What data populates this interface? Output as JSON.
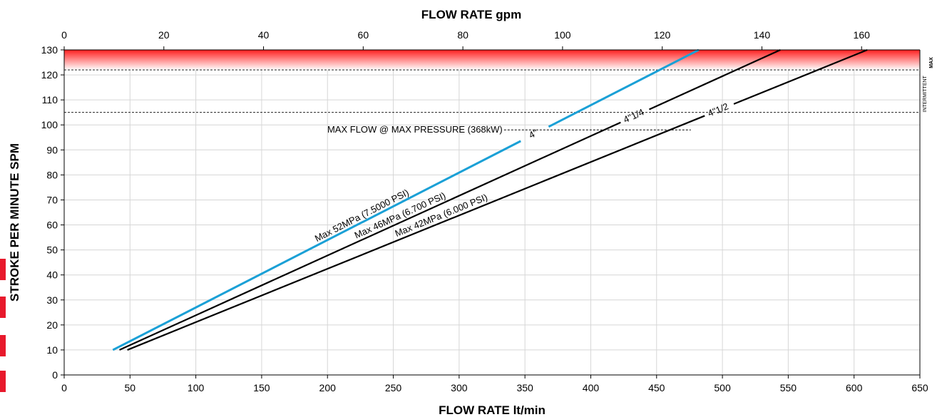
{
  "chart_data": {
    "type": "line",
    "xlabel": "FLOW RATE  lt/min",
    "x2label": "FLOW RATE  gpm",
    "ylabel": "STROKE PER MINUTE     SPM",
    "xlim": [
      0,
      650
    ],
    "x2lim": [
      0,
      171.7
    ],
    "ylim": [
      0,
      130
    ],
    "xticks": [
      "0",
      "50",
      "100",
      "150",
      "200",
      "250",
      "300",
      "350",
      "400",
      "450",
      "500",
      "550",
      "600",
      "650"
    ],
    "x2ticks": [
      "0",
      "20",
      "40",
      "60",
      "80",
      "100",
      "120",
      "140",
      "160"
    ],
    "yticks": [
      "0",
      "10",
      "20",
      "30",
      "40",
      "50",
      "60",
      "70",
      "80",
      "90",
      "100",
      "110",
      "120",
      "130"
    ],
    "grid": true,
    "intermittent_max_band": {
      "from": 122,
      "to": 130,
      "color": "#ff2a2a",
      "label": "INTERMITTENT",
      "label2": "MAX"
    },
    "continuous_max_line": 105,
    "series": [
      {
        "name": "4\"",
        "pressure_label": "Max 52MPa    (7.5000 PSI)",
        "color": "#1aa0d6",
        "x": [
          37,
          482
        ],
        "y": [
          10,
          130
        ]
      },
      {
        "name": "4\"1/4",
        "pressure_label": "Max 46MPa    (6.700 PSI)",
        "color": "#000000",
        "x": [
          42,
          544
        ],
        "y": [
          10,
          130
        ]
      },
      {
        "name": "4\"1/2",
        "pressure_label": "Max 42MPa    (6.000 PSI)",
        "color": "#000000",
        "x": [
          48,
          610
        ],
        "y": [
          10,
          130
        ]
      }
    ],
    "annotation": {
      "text": "MAX FLOW @ MAX PRESSURE (368kW)",
      "y": 98,
      "x_end": 476
    }
  }
}
